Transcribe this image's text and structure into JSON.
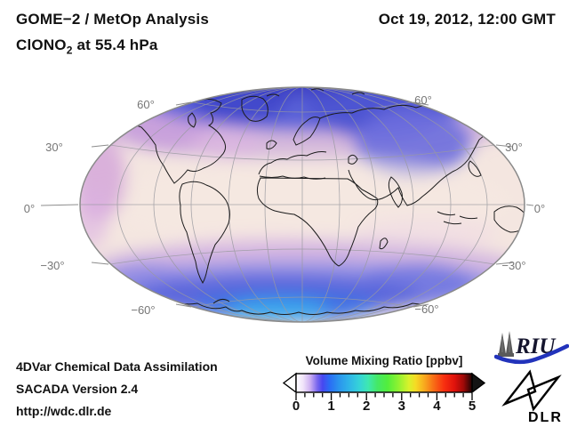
{
  "header": {
    "title_line1": "GOME−2 / MetOp Analysis",
    "formula_main": "ClONO",
    "formula_sub": "2",
    "formula_rest": " at 55.4 hPa",
    "datetime": "Oct 19, 2012, 12:00 GMT"
  },
  "map": {
    "lat_labels": [
      {
        "side": "left",
        "text": "60°"
      },
      {
        "side": "left",
        "text": "30°"
      },
      {
        "side": "left",
        "text": "0°"
      },
      {
        "side": "left",
        "text": "−30°"
      },
      {
        "side": "left",
        "text": "−60°"
      },
      {
        "side": "right",
        "text": "60°"
      },
      {
        "side": "right",
        "text": "30°"
      },
      {
        "side": "right",
        "text": "0°"
      },
      {
        "side": "right",
        "text": "−30°"
      },
      {
        "side": "right",
        "text": "−60°"
      }
    ]
  },
  "colorbar": {
    "title": "Volume Mixing Ratio [ppbv]",
    "tick_labels": [
      "0",
      "1",
      "2",
      "3",
      "4",
      "5"
    ],
    "minor_ticks_per_unit": 4,
    "gradient_stops": [
      [
        0,
        "#ffffff"
      ],
      [
        0.04,
        "#f0e4fa"
      ],
      [
        0.08,
        "#cdb0f2"
      ],
      [
        0.12,
        "#7a68ee"
      ],
      [
        0.15,
        "#4747f0"
      ],
      [
        0.19,
        "#2a6cf4"
      ],
      [
        0.24,
        "#2a93ee"
      ],
      [
        0.3,
        "#2fb4e8"
      ],
      [
        0.36,
        "#35d4d8"
      ],
      [
        0.41,
        "#3ee8b0"
      ],
      [
        0.46,
        "#44e868"
      ],
      [
        0.52,
        "#52ee3c"
      ],
      [
        0.58,
        "#8ef231"
      ],
      [
        0.64,
        "#d8f22c"
      ],
      [
        0.68,
        "#f6da24"
      ],
      [
        0.73,
        "#f8a81e"
      ],
      [
        0.78,
        "#f86f16"
      ],
      [
        0.84,
        "#f83010"
      ],
      [
        0.9,
        "#e0120c"
      ],
      [
        0.95,
        "#a00a08"
      ],
      [
        1,
        "#1e0404"
      ]
    ]
  },
  "footer": {
    "line1": "4DVar Chemical Data Assimilation",
    "line2": "SACADA Version 2.4",
    "line3": "http://wdc.dlr.de"
  },
  "logos": {
    "riu": "RIU",
    "dlr": "DLR"
  },
  "palette": {
    "background": "#ffffff",
    "map_base_pink": "#f4e6e0",
    "north_blue": "#4d55d2",
    "south_bright_blue": "#38a8ee",
    "mid_purple": "#cf9ad8",
    "riu_blue": "#2233bb",
    "label_gray": "#767676"
  },
  "chart_data": {
    "type": "heatmap",
    "title": "GOME−2 / MetOp Analysis — ClONO2 at 55.4 hPa",
    "timestamp": "Oct 19, 2012, 12:00 GMT",
    "projection": "elliptical global projection (Hammer/Mollweide style), coastlines overlaid",
    "lat_gridlines_deg": [
      60,
      30,
      0,
      -30,
      -60
    ],
    "colorbar": {
      "label": "Volume Mixing Ratio [ppbv]",
      "range": [
        0,
        5
      ],
      "ticks": [
        0,
        1,
        2,
        3,
        4,
        5
      ],
      "arrow_extensions": [
        "below-min",
        "above-max"
      ]
    },
    "approx_field_ppbv": [
      {
        "region": "Arctic cap / northern high latitudes > 55N",
        "value": 0.9
      },
      {
        "region": "Dark blue maxima near pole (N Canada, Siberia)",
        "value": 1.1
      },
      {
        "region": "Siberia / East Asia lobe 45-60N",
        "value": 0.8
      },
      {
        "region": "Northern mid-latitudes (purple fringe)",
        "value": 0.35
      },
      {
        "region": "Tropics (pale pink)",
        "value": 0.1
      },
      {
        "region": "Southern mid-latitude purple band 30-50S",
        "value": 0.4
      },
      {
        "region": "Antarctic collar blue band 55-75S",
        "value": 1.2
      },
      {
        "region": "Bright blue core along Antarctic coast",
        "value": 1.8
      }
    ]
  }
}
